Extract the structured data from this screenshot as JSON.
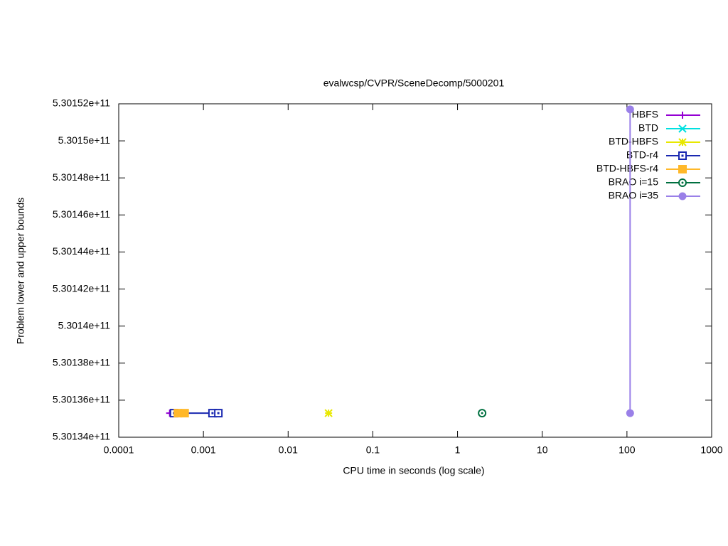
{
  "chart_data": {
    "type": "line",
    "title": "evalwcsp/CVPR/SceneDecomp/5000201",
    "xlabel": "CPU time in seconds (log scale)",
    "ylabel": "Problem lower and upper bounds",
    "xscale": "log",
    "xlim": [
      0.0001,
      1000
    ],
    "xticks": [
      0.0001,
      0.001,
      0.01,
      0.1,
      1,
      10,
      100,
      1000
    ],
    "ylim": [
      530134000000,
      530152000000
    ],
    "yticks": [
      {
        "value": 530134000000,
        "label": "5.30134e+11"
      },
      {
        "value": 530136000000,
        "label": "5.30136e+11"
      },
      {
        "value": 530138000000,
        "label": "5.30138e+11"
      },
      {
        "value": 530140000000,
        "label": "5.3014e+11"
      },
      {
        "value": 530142000000,
        "label": "5.30142e+11"
      },
      {
        "value": 530144000000,
        "label": "5.30144e+11"
      },
      {
        "value": 530146000000,
        "label": "5.30146e+11"
      },
      {
        "value": 530148000000,
        "label": "5.30148e+11"
      },
      {
        "value": 530150000000,
        "label": "5.3015e+11"
      },
      {
        "value": 530152000000,
        "label": "5.30152e+11"
      }
    ],
    "legend": "top-right",
    "series": [
      {
        "name": "HBFS",
        "color": "#9400d3",
        "marker": "plus",
        "x": [
          0.0004,
          0.00042
        ],
        "y": [
          530135300000,
          530135300000
        ]
      },
      {
        "name": "BTD",
        "color": "#00e0e0",
        "marker": "cross",
        "x": [
          0.00045
        ],
        "y": [
          530135300000
        ]
      },
      {
        "name": "BTD-HBFS",
        "color": "#e8e800",
        "marker": "star",
        "x": [
          0.03
        ],
        "y": [
          530135300000
        ]
      },
      {
        "name": "BTD-r4",
        "color": "#1a28b0",
        "marker": "box-open",
        "x": [
          0.00045,
          0.00128,
          0.0015
        ],
        "y": [
          530135300000,
          530135300000,
          530135300000
        ]
      },
      {
        "name": "BTD-HBFS-r4",
        "color": "#ffb829",
        "marker": "box-filled",
        "x": [
          0.0005,
          0.0006
        ],
        "y": [
          530135300000,
          530135300000
        ]
      },
      {
        "name": "BRAO i=15",
        "color": "#007040",
        "marker": "circle-open",
        "x": [
          1.95
        ],
        "y": [
          530135300000
        ]
      },
      {
        "name": "BRAO i=35",
        "color": "#9a80e8",
        "marker": "circle-filled",
        "x": [
          109,
          109
        ],
        "y": [
          530135300000,
          530151700000
        ]
      }
    ]
  }
}
